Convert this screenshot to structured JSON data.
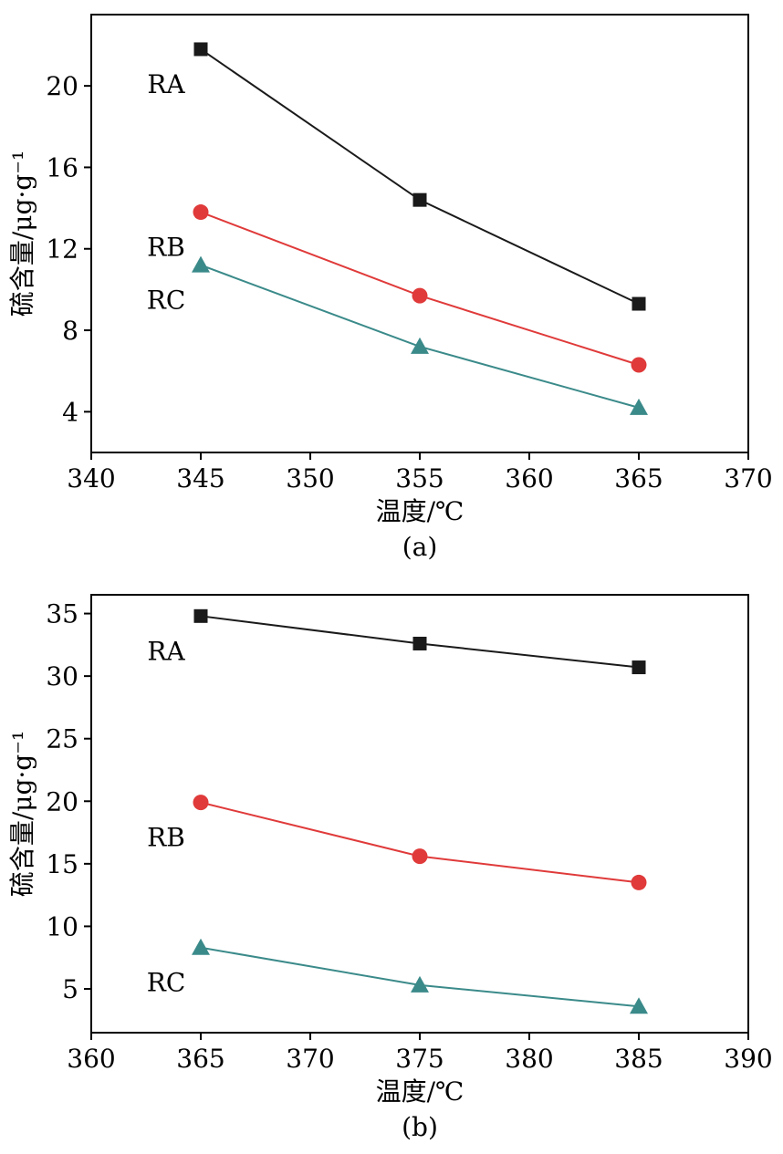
{
  "colors": {
    "background": "#ffffff",
    "axis": "#000000",
    "text": "#000000",
    "series_ra": "#1a1a1a",
    "series_rb": "#e03a3a",
    "series_rc": "#3b8a8a"
  },
  "chart_data": [
    {
      "type": "line",
      "caption": "(a)",
      "xlabel": "温度/℃",
      "ylabel": "硫含量/μg·g⁻¹",
      "x": [
        345,
        355,
        365
      ],
      "xlim": [
        340,
        370
      ],
      "xticks": [
        340,
        345,
        350,
        355,
        360,
        365,
        370
      ],
      "ylim": [
        2,
        23.5
      ],
      "yticks": [
        4,
        8,
        12,
        16,
        20
      ],
      "grid": false,
      "legend": "inline series labels near first data point",
      "series": [
        {
          "name": "RA",
          "marker": "square",
          "color": "#1a1a1a",
          "values": [
            21.8,
            14.4,
            9.3
          ]
        },
        {
          "name": "RB",
          "marker": "circle",
          "color": "#e03a3a",
          "values": [
            13.8,
            9.7,
            6.3
          ]
        },
        {
          "name": "RC",
          "marker": "triangle",
          "color": "#3b8a8a",
          "values": [
            11.2,
            7.2,
            4.2
          ]
        }
      ]
    },
    {
      "type": "line",
      "caption": "(b)",
      "xlabel": "温度/℃",
      "ylabel": "硫含量/μg·g⁻¹",
      "x": [
        365,
        375,
        385
      ],
      "xlim": [
        360,
        390
      ],
      "xticks": [
        360,
        365,
        370,
        375,
        380,
        385,
        390
      ],
      "ylim": [
        1.5,
        36.5
      ],
      "yticks": [
        5,
        10,
        15,
        20,
        25,
        30,
        35
      ],
      "grid": false,
      "legend": "inline series labels near first data point",
      "series": [
        {
          "name": "RA",
          "marker": "square",
          "color": "#1a1a1a",
          "values": [
            34.8,
            32.6,
            30.7
          ]
        },
        {
          "name": "RB",
          "marker": "circle",
          "color": "#e03a3a",
          "values": [
            19.9,
            15.6,
            13.5
          ]
        },
        {
          "name": "RC",
          "marker": "triangle",
          "color": "#3b8a8a",
          "values": [
            8.3,
            5.3,
            3.6
          ]
        }
      ]
    }
  ]
}
